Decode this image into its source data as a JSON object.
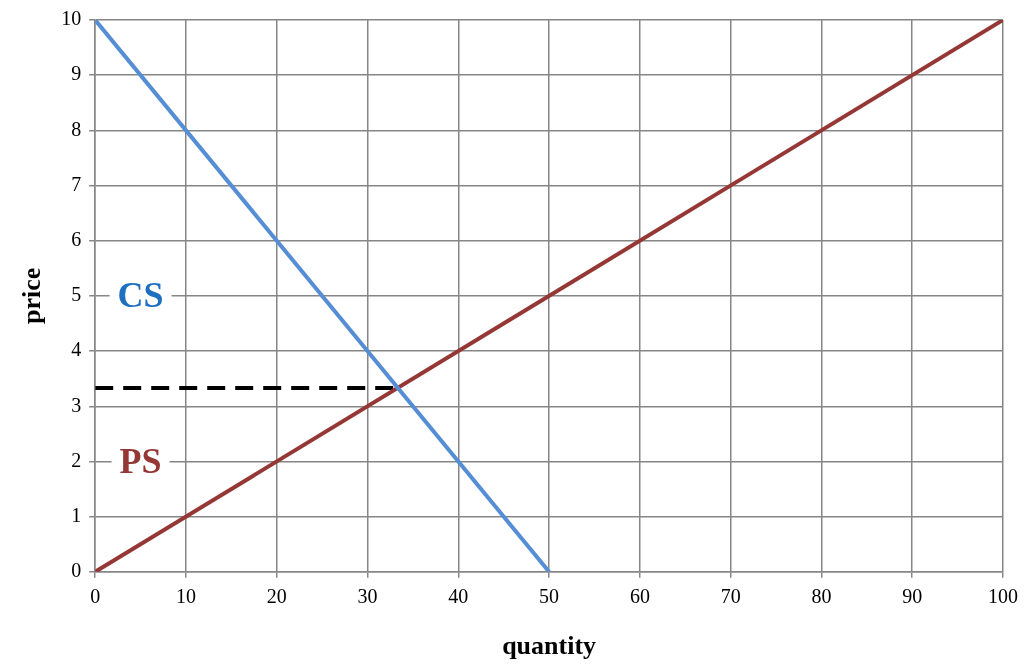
{
  "chart_data": {
    "type": "line",
    "xlabel": "quantity",
    "ylabel": "price",
    "xlim": [
      0,
      100
    ],
    "xticks": [
      0,
      10,
      20,
      30,
      40,
      50,
      60,
      70,
      80,
      90,
      100
    ],
    "ylim": [
      0,
      10
    ],
    "yticks": [
      0,
      1,
      2,
      3,
      4,
      5,
      6,
      7,
      8,
      9,
      10
    ],
    "grid": true,
    "marker": "none",
    "series": [
      {
        "color": "#558ed5",
        "x": [
          0,
          50
        ],
        "values": [
          10,
          0
        ]
      },
      {
        "color": "#953735",
        "x": [
          0,
          100
        ],
        "values": [
          0,
          10
        ]
      },
      {
        "color": "#000000",
        "x": [
          0,
          33.3
        ],
        "values": [
          3.33,
          3.33
        ],
        "line_style": "dashed"
      }
    ],
    "annotations": [
      "CS",
      "PS"
    ]
  }
}
